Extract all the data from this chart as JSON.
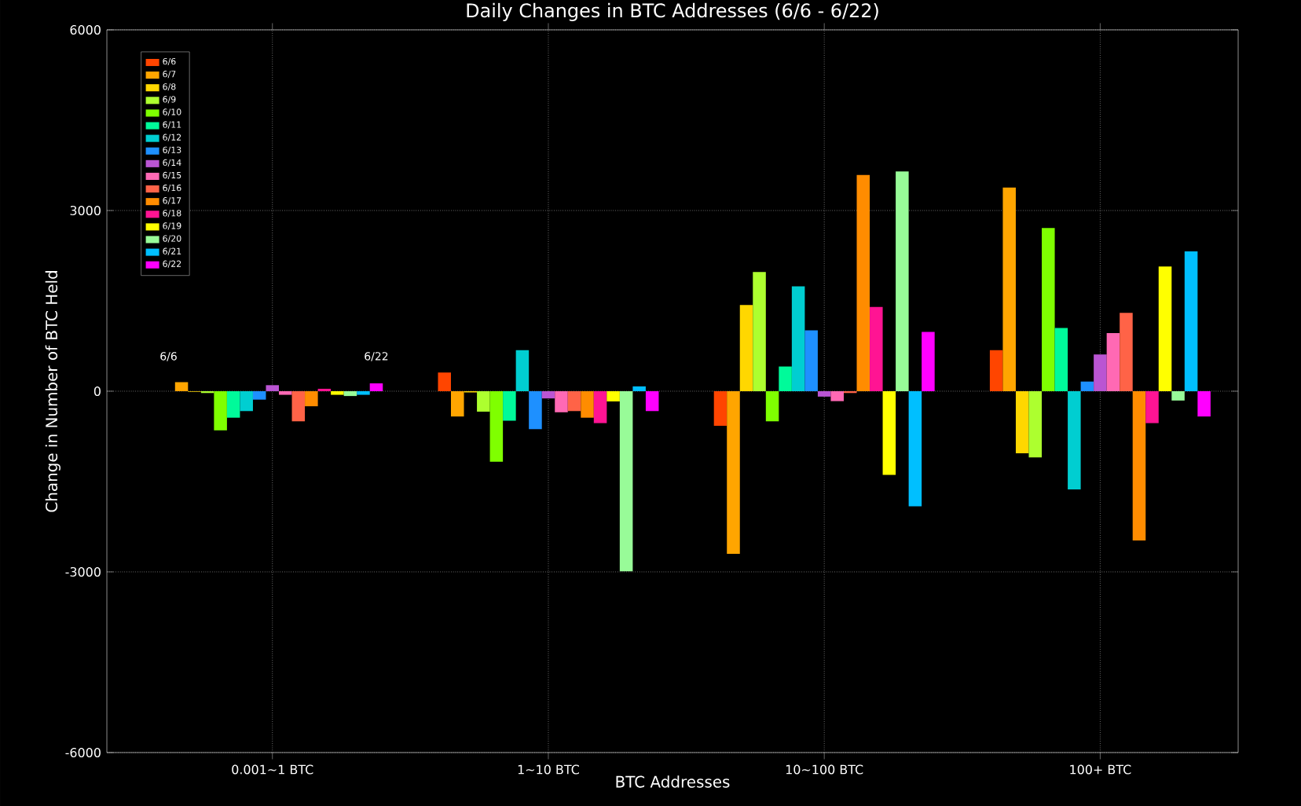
{
  "chart_data": {
    "type": "bar",
    "title": "Daily Changes in BTC Addresses (6/6 - 6/22)",
    "xlabel": "BTC Addresses",
    "ylabel": "Change in Number of BTC Held",
    "categories": [
      "0.001~1 BTC",
      "1~10 BTC",
      "10~100 BTC",
      "100+ BTC"
    ],
    "ylim": [
      -6000,
      6000
    ],
    "yticks": [
      -6000,
      -3000,
      0,
      3000,
      6000
    ],
    "grid": true,
    "legend": "top left",
    "annotations": [
      "6/6",
      "6/22"
    ],
    "series": [
      {
        "name": "6/6",
        "color": "#ff4500",
        "values": [
          0,
          310,
          -575,
          680
        ]
      },
      {
        "name": "6/7",
        "color": "#ffa500",
        "values": [
          150,
          -420,
          -2700,
          3380
        ]
      },
      {
        "name": "6/8",
        "color": "#ffd700",
        "values": [
          -10,
          -20,
          1430,
          -1030
        ]
      },
      {
        "name": "6/9",
        "color": "#adff2f",
        "values": [
          -30,
          -340,
          1980,
          -1100
        ]
      },
      {
        "name": "6/10",
        "color": "#7fff00",
        "values": [
          -650,
          -1170,
          -500,
          2710
        ]
      },
      {
        "name": "6/11",
        "color": "#00fa9a",
        "values": [
          -440,
          -490,
          410,
          1050
        ]
      },
      {
        "name": "6/12",
        "color": "#00ced1",
        "values": [
          -330,
          680,
          1740,
          -1630
        ]
      },
      {
        "name": "6/13",
        "color": "#1e90ff",
        "values": [
          -140,
          -630,
          1010,
          160
        ]
      },
      {
        "name": "6/14",
        "color": "#ba55d3",
        "values": [
          100,
          -120,
          -90,
          610
        ]
      },
      {
        "name": "6/15",
        "color": "#ff69b4",
        "values": [
          -60,
          -350,
          -165,
          965
        ]
      },
      {
        "name": "6/16",
        "color": "#ff6347",
        "values": [
          -500,
          -330,
          -30,
          1300
        ]
      },
      {
        "name": "6/17",
        "color": "#ff8c00",
        "values": [
          -250,
          -440,
          3590,
          -2480
        ]
      },
      {
        "name": "6/18",
        "color": "#ff1493",
        "values": [
          40,
          -530,
          1400,
          -530
        ]
      },
      {
        "name": "6/19",
        "color": "#ffff00",
        "values": [
          -60,
          -170,
          -1390,
          2070
        ]
      },
      {
        "name": "6/20",
        "color": "#98fb98",
        "values": [
          -80,
          -2990,
          3650,
          -155
        ]
      },
      {
        "name": "6/21",
        "color": "#00bfff",
        "values": [
          -60,
          80,
          -1910,
          2320
        ]
      },
      {
        "name": "6/22",
        "color": "#ff00ff",
        "values": [
          130,
          -330,
          985,
          -420
        ]
      }
    ]
  }
}
